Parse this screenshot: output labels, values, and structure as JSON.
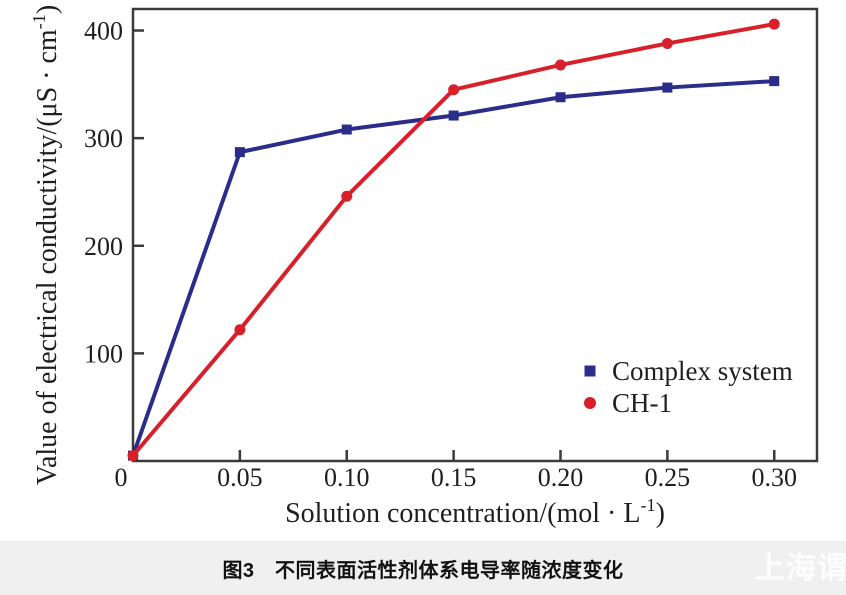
{
  "caption": {
    "text": "图3　不同表面活性剂体系电导率随浓度变化"
  },
  "watermark": {
    "text": "上海谓"
  },
  "colors": {
    "axis": "#3b3b3b",
    "text": "#1f1f1f",
    "caption_band": "#f0f0f0",
    "watermark": "#ffffff",
    "complex_system_blue": "#2a2d8a",
    "ch1_red": "#d8202a"
  },
  "chart_data": {
    "type": "line",
    "x": [
      0,
      0.05,
      0.1,
      0.15,
      0.2,
      0.25,
      0.3
    ],
    "series": [
      {
        "name": "Complex system",
        "color": "#2a2d8a",
        "marker": "square",
        "values": [
          5,
          287,
          308,
          321,
          338,
          347,
          353
        ]
      },
      {
        "name": "CH-1",
        "color": "#d8202a",
        "marker": "circle",
        "values": [
          5,
          122,
          246,
          345,
          368,
          388,
          406
        ]
      }
    ],
    "x_axis": {
      "label": "Solution concentration/(mol · L⁻¹)",
      "range": [
        0,
        0.32
      ],
      "tick_values": [
        0.05,
        0.1,
        0.15,
        0.2,
        0.25,
        0.3
      ],
      "tick_labels": [
        "0.05",
        "0.10",
        "0.15",
        "0.20",
        "0.25",
        "0.30"
      ],
      "origin_label": "0"
    },
    "y_axis": {
      "label": "Value of electrical conductivity/(μS · cm⁻¹)",
      "range": [
        0,
        420
      ],
      "tick_values": [
        100,
        200,
        300,
        400
      ],
      "tick_labels": [
        "100",
        "200",
        "300",
        "400"
      ]
    },
    "grid": false,
    "legend_position": "inside-right-middle"
  }
}
